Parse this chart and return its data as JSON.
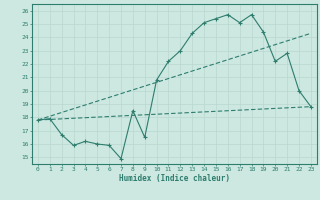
{
  "title": "",
  "xlabel": "Humidex (Indice chaleur)",
  "bg_color": "#cce8e0",
  "grid_color": "#aacccc",
  "line_color": "#2e7d6e",
  "xlim": [
    -0.5,
    23.5
  ],
  "ylim": [
    14.5,
    26.5
  ],
  "xticks": [
    0,
    1,
    2,
    3,
    4,
    5,
    6,
    7,
    8,
    9,
    10,
    11,
    12,
    13,
    14,
    15,
    16,
    17,
    18,
    19,
    20,
    21,
    22,
    23
  ],
  "yticks": [
    15,
    16,
    17,
    18,
    19,
    20,
    21,
    22,
    23,
    24,
    25,
    26
  ],
  "line1_x": [
    0,
    1,
    2,
    3,
    4,
    5,
    6,
    7,
    8,
    9,
    10,
    11,
    12,
    13,
    14,
    15,
    16,
    17,
    18,
    19,
    20,
    21,
    22,
    23
  ],
  "line1_y": [
    17.8,
    17.9,
    16.7,
    15.9,
    16.2,
    16.0,
    15.9,
    14.9,
    18.5,
    16.5,
    20.8,
    22.2,
    23.0,
    24.3,
    25.1,
    25.4,
    25.7,
    25.1,
    25.7,
    24.4,
    22.2,
    22.8,
    20.0,
    18.8
  ],
  "line2_x": [
    0,
    23
  ],
  "line2_y": [
    17.8,
    24.3
  ],
  "line3_x": [
    0,
    23
  ],
  "line3_y": [
    17.8,
    18.8
  ]
}
